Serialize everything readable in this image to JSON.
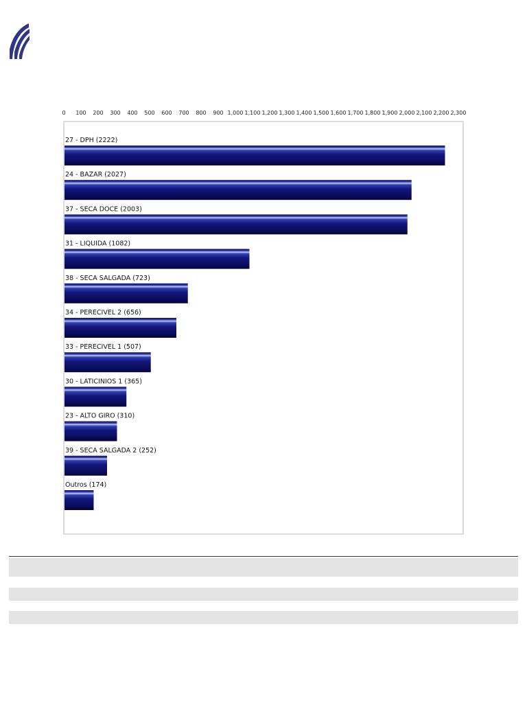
{
  "logo": {
    "icon": "stripes-logo-icon",
    "color": "#2f3587"
  },
  "chart_data": {
    "type": "bar",
    "orientation": "horizontal",
    "categories": [
      "27 - DPH (2222)",
      "24 - BAZAR (2027)",
      "37 - SECA DOCE (2003)",
      "31 - LIQUIDA (1082)",
      "38 - SECA SALGADA (723)",
      "34 - PERECIVEL 2 (656)",
      "33 - PERECIVEL 1 (507)",
      "30 - LATICINIOS 1 (365)",
      "23 - ALTO GIRO (310)",
      "39 - SECA SALGADA 2 (252)",
      "Outros (174)"
    ],
    "values": [
      2222,
      2027,
      2003,
      1082,
      723,
      656,
      507,
      365,
      310,
      252,
      174
    ],
    "xlim": [
      0,
      2300
    ],
    "x_ticks": [
      "0",
      "100",
      "200",
      "300",
      "400",
      "500",
      "600",
      "700",
      "800",
      "900",
      "1,000",
      "1,100",
      "1,200",
      "1,300",
      "1,400",
      "1,500",
      "1,600",
      "1,700",
      "1,800",
      "1,900",
      "2,000",
      "2,100",
      "2,200",
      "2,300"
    ],
    "axis_position": "top",
    "grid": false,
    "legend": "none",
    "bar_color": "#14177a",
    "bar_highlight": "#aab4f0"
  }
}
